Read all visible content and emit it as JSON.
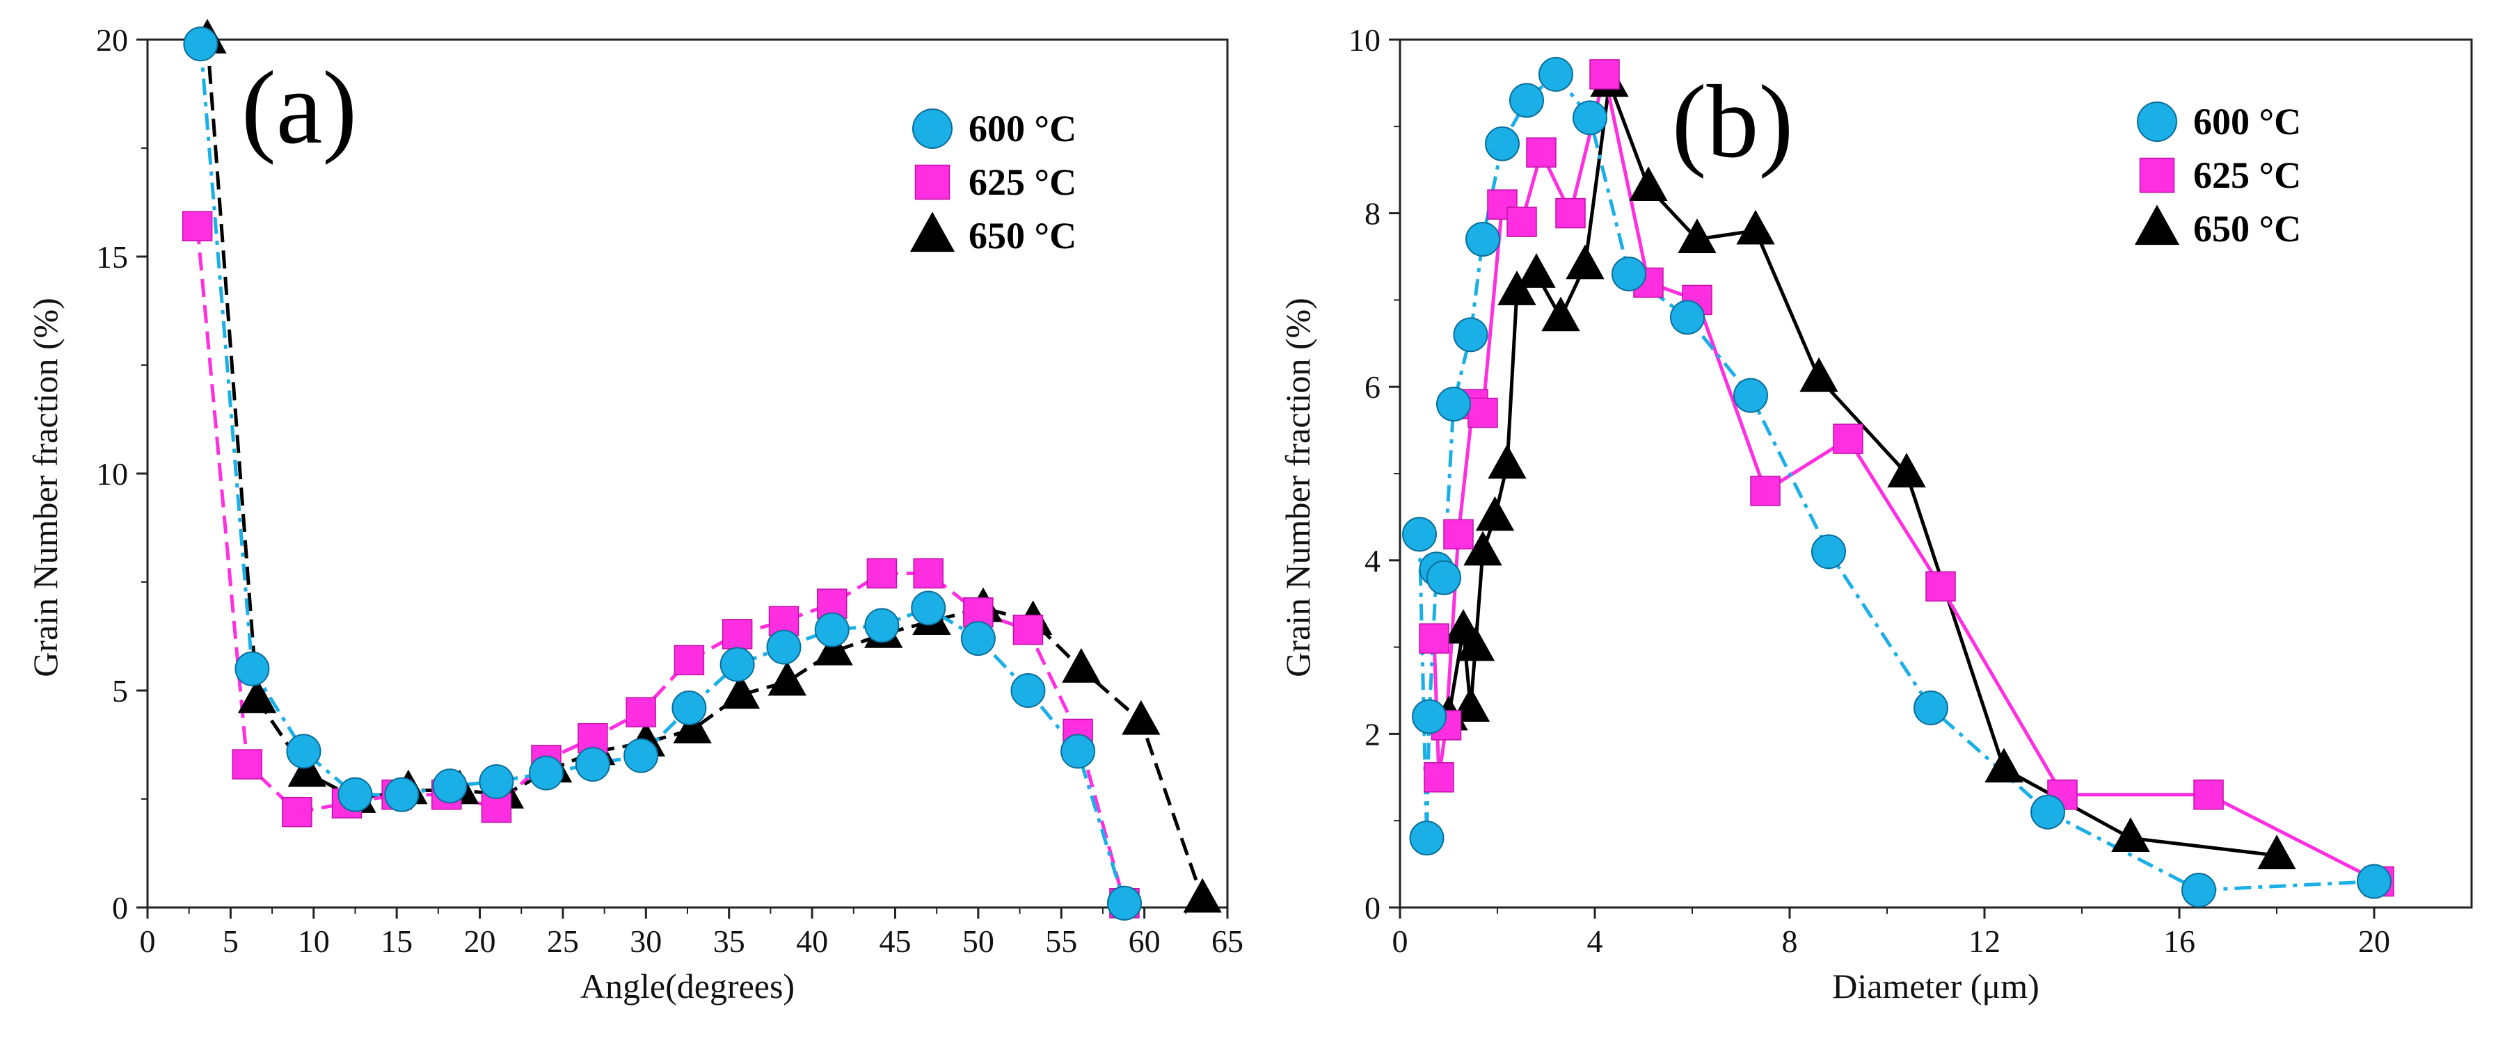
{
  "chart_data": [
    {
      "type": "line",
      "panel_label": "(a)",
      "xlabel": "Angle(degrees)",
      "ylabel": "Grain Number fraction (%)",
      "xlim": [
        0,
        65
      ],
      "ylim": [
        0,
        20
      ],
      "xticks": [
        0,
        5,
        10,
        15,
        20,
        25,
        30,
        35,
        40,
        45,
        50,
        55,
        60,
        65
      ],
      "xtick_labels": [
        "0",
        "5",
        "10",
        "15",
        "20",
        "25",
        "30",
        "35",
        "40",
        "45",
        "50",
        "55",
        "60",
        "65"
      ],
      "yticks": [
        0,
        5,
        10,
        15,
        20
      ],
      "ytick_labels": [
        "0",
        "5",
        "10",
        "15",
        "20"
      ],
      "legend_position": "top-right",
      "series": [
        {
          "name": "600 °C",
          "marker": "circle",
          "color": "#1aafe6",
          "line_color": "#1aafe6",
          "dash": "dashdot",
          "x": [
            3.2,
            6.3,
            9.4,
            12.5,
            15.3,
            18.2,
            21.0,
            24.0,
            26.8,
            29.7,
            32.6,
            35.5,
            38.3,
            41.2,
            44.2,
            47.0,
            50.0,
            53.0,
            56.0,
            58.8
          ],
          "y": [
            19.9,
            5.5,
            3.6,
            2.6,
            2.6,
            2.8,
            2.9,
            3.1,
            3.3,
            3.5,
            4.6,
            5.6,
            6.0,
            6.4,
            6.5,
            6.9,
            6.2,
            5.0,
            3.6,
            0.1
          ]
        },
        {
          "name": "625 °C",
          "marker": "square",
          "color": "#ff2ee0",
          "line_color": "#ff2ee0",
          "dash": "dash",
          "x": [
            3.0,
            6.0,
            9.0,
            12.0,
            15.0,
            18.0,
            21.0,
            24.0,
            26.8,
            29.7,
            32.6,
            35.5,
            38.3,
            41.2,
            44.2,
            47.0,
            50.0,
            53.0,
            56.0,
            58.8
          ],
          "y": [
            15.7,
            3.3,
            2.2,
            2.4,
            2.6,
            2.6,
            2.3,
            3.4,
            3.9,
            4.5,
            5.7,
            6.3,
            6.6,
            7.0,
            7.7,
            7.7,
            6.8,
            6.4,
            4.0,
            0.1
          ]
        },
        {
          "name": "650 °C",
          "marker": "triangle",
          "color": "#000000",
          "line_color": "#000000",
          "dash": "dash",
          "x": [
            3.6,
            6.6,
            9.6,
            12.6,
            15.7,
            18.8,
            21.5,
            24.4,
            27.0,
            30.0,
            32.8,
            35.7,
            38.5,
            41.3,
            44.3,
            47.2,
            50.3,
            53.3,
            56.2,
            59.8,
            63.5
          ],
          "y": [
            20.0,
            4.8,
            3.1,
            2.5,
            2.7,
            2.7,
            2.6,
            3.2,
            3.6,
            3.8,
            4.1,
            4.9,
            5.2,
            5.9,
            6.3,
            6.6,
            6.9,
            6.6,
            5.5,
            4.3,
            0.2
          ]
        }
      ]
    },
    {
      "type": "line",
      "panel_label": "(b)",
      "xlabel": "Diameter (μm)",
      "ylabel": "Grain Number fraction (%)",
      "xlim": [
        0,
        22
      ],
      "ylim": [
        0,
        10
      ],
      "xticks": [
        0,
        4,
        8,
        12,
        16,
        20
      ],
      "xtick_labels": [
        "0",
        "4",
        "8",
        "12",
        "16",
        "20"
      ],
      "yticks": [
        0,
        2,
        4,
        6,
        8,
        10
      ],
      "ytick_labels": [
        "0",
        "2",
        "4",
        "6",
        "8",
        "10"
      ],
      "legend_position": "top-right",
      "series": [
        {
          "name": "600 °C",
          "marker": "circle",
          "color": "#1aafe6",
          "line_color": "#1aafe6",
          "dash": "dashdot",
          "x": [
            0.4,
            0.55,
            0.6,
            0.75,
            0.9,
            1.1,
            1.45,
            1.7,
            2.1,
            2.6,
            3.2,
            3.9,
            4.7,
            5.9,
            7.2,
            8.8,
            10.9,
            13.3,
            16.4,
            20.0
          ],
          "y": [
            4.3,
            0.8,
            2.2,
            3.9,
            3.8,
            5.8,
            6.6,
            7.7,
            8.8,
            9.3,
            9.6,
            9.1,
            7.3,
            6.8,
            5.9,
            4.1,
            2.3,
            1.1,
            0.2,
            0.3
          ]
        },
        {
          "name": "625 °C",
          "marker": "square",
          "color": "#ff2ee0",
          "line_color": "#ff2ee0",
          "dash": "solid",
          "x": [
            0.7,
            0.8,
            0.95,
            1.2,
            1.5,
            1.7,
            2.1,
            2.5,
            2.9,
            3.5,
            4.2,
            5.1,
            6.1,
            7.5,
            9.2,
            11.1,
            13.6,
            16.6,
            20.1
          ],
          "y": [
            3.1,
            1.5,
            2.1,
            4.3,
            5.8,
            5.7,
            8.1,
            7.9,
            8.7,
            8.0,
            9.6,
            7.2,
            7.0,
            4.8,
            5.4,
            3.7,
            1.3,
            1.3,
            0.3
          ]
        },
        {
          "name": "650 °C",
          "marker": "triangle",
          "color": "#000000",
          "line_color": "#000000",
          "dash": "solid",
          "x": [
            1.0,
            1.3,
            1.45,
            1.55,
            1.7,
            1.95,
            2.2,
            2.4,
            2.8,
            3.3,
            3.8,
            4.3,
            5.1,
            6.1,
            7.3,
            8.6,
            10.4,
            12.4,
            15.0,
            18.0
          ],
          "y": [
            2.2,
            3.2,
            2.3,
            3.0,
            4.1,
            4.5,
            5.1,
            7.1,
            7.3,
            6.8,
            7.4,
            9.5,
            8.3,
            7.7,
            7.8,
            6.1,
            5.0,
            1.6,
            0.8,
            0.6
          ]
        }
      ]
    }
  ]
}
